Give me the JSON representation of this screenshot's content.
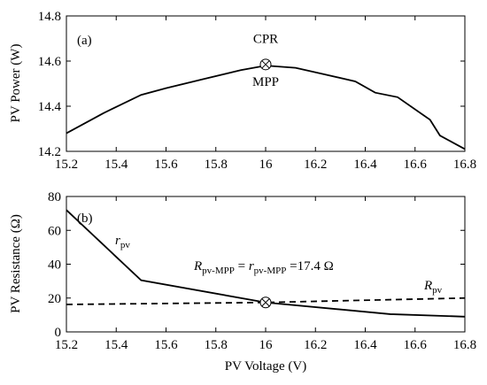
{
  "chart_data": [
    {
      "panel_tag": "(a)",
      "type": "line",
      "xlabel": "",
      "ylabel": "PV Power (W)",
      "xlim": [
        15.2,
        16.8
      ],
      "ylim": [
        14.2,
        14.8
      ],
      "xticks": [
        "15.2",
        "15.4",
        "15.6",
        "15.8",
        "16",
        "16.2",
        "16.4",
        "16.6",
        "16.8"
      ],
      "yticks": [
        "14.2",
        "14.4",
        "14.6",
        "14.8"
      ],
      "grid": false,
      "series": [
        {
          "x": [
            15.2,
            15.25,
            15.35,
            15.5,
            15.6,
            15.75,
            15.9,
            16.0,
            16.12,
            16.24,
            16.36,
            16.44,
            16.53,
            16.66,
            16.7,
            16.75,
            16.8
          ],
          "y": [
            14.28,
            14.31,
            14.37,
            14.45,
            14.48,
            14.52,
            14.56,
            14.58,
            14.57,
            14.54,
            14.51,
            14.46,
            14.44,
            14.34,
            14.27,
            14.24,
            14.21
          ]
        }
      ],
      "annotations": [
        {
          "text": "CPR",
          "x": 16.0,
          "y": 14.68
        },
        {
          "text": "MPP",
          "x": 16.0,
          "y": 14.49
        }
      ],
      "marker": {
        "x": 16.0,
        "y": 14.585,
        "symbol": "circle-cross"
      }
    },
    {
      "panel_tag": "(b)",
      "type": "line",
      "xlabel": "PV Voltage (V)",
      "ylabel": "PV Resistance (Ω)",
      "xlim": [
        15.2,
        16.8
      ],
      "ylim": [
        0,
        80
      ],
      "xticks": [
        "15.2",
        "15.4",
        "15.6",
        "15.8",
        "16",
        "16.2",
        "16.4",
        "16.6",
        "16.8"
      ],
      "yticks": [
        "0",
        "20",
        "40",
        "60",
        "80"
      ],
      "grid": false,
      "series": [
        {
          "name": "r",
          "name_sub": "pv",
          "style": "solid",
          "x": [
            15.2,
            15.5,
            16.0,
            16.5,
            16.8
          ],
          "y": [
            72,
            30.5,
            17.4,
            10.5,
            9
          ]
        },
        {
          "name": "R",
          "name_sub": "pv",
          "style": "dashed",
          "x": [
            15.2,
            16.0,
            16.8
          ],
          "y": [
            16.2,
            17.4,
            20
          ]
        }
      ],
      "equation": {
        "lhs": "R",
        "lhs_sub": "pv-MPP",
        "eq1": " = ",
        "mid": "r",
        "mid_sub": "pv-MPP",
        "rhs": " =17.4 Ω"
      },
      "marker": {
        "x": 16.0,
        "y": 17.4,
        "symbol": "circle-cross"
      }
    }
  ]
}
